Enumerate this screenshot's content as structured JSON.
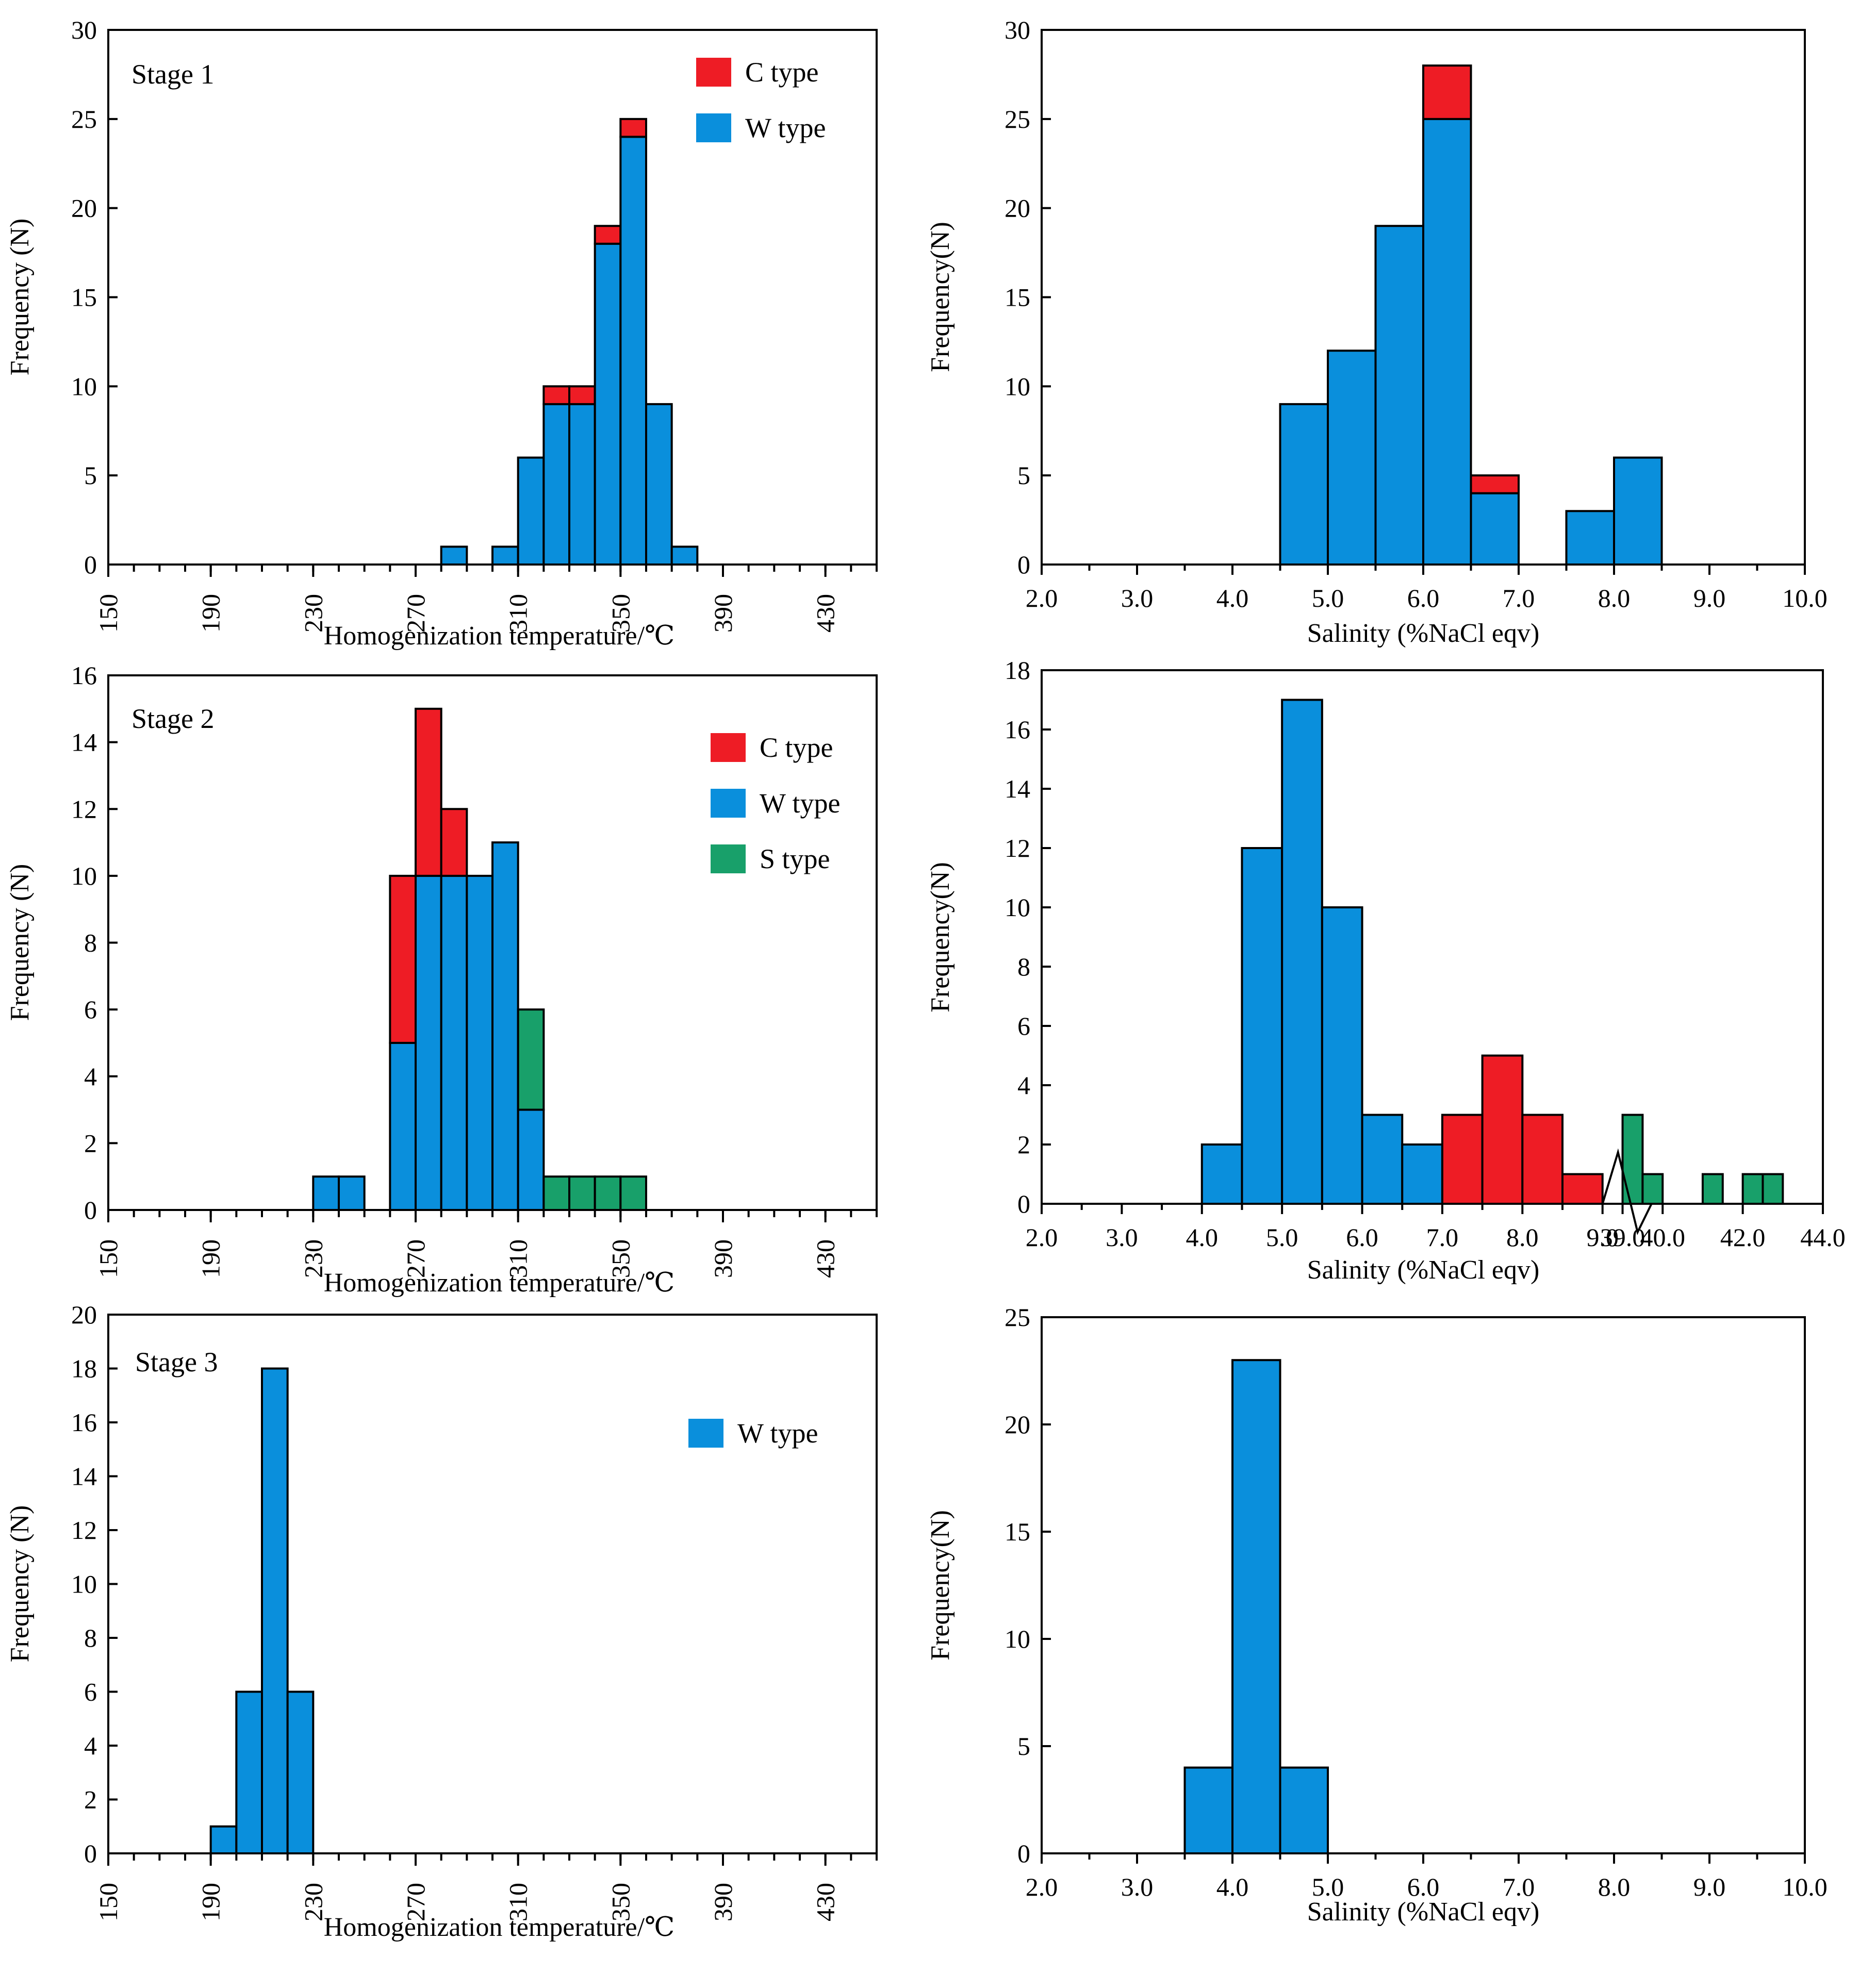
{
  "colors": {
    "C": "#ee1c25",
    "W": "#0a8fdc",
    "S": "#18a06a",
    "edge": "#000000"
  },
  "chart_data": [
    {
      "type": "bar",
      "stacked": true,
      "panel": "stage1-temperature",
      "stage_label": "Stage 1",
      "xlabel": "Homogenization temperature/℃",
      "ylabel": "Frequency (N)",
      "xlim": [
        150,
        450
      ],
      "ylim": [
        0,
        30
      ],
      "bin_width": 10,
      "x_ticks": [
        "150",
        "190",
        "230",
        "270",
        "310",
        "350",
        "390",
        "430"
      ],
      "y_ticks": [
        "0",
        "5",
        "10",
        "15",
        "20",
        "25",
        "30"
      ],
      "legend": [
        {
          "key": "C",
          "label": "C type"
        },
        {
          "key": "W",
          "label": "W type"
        }
      ],
      "bins": [
        {
          "start": 280,
          "W": 1,
          "C": 0
        },
        {
          "start": 300,
          "W": 1,
          "C": 0
        },
        {
          "start": 310,
          "W": 6,
          "C": 0
        },
        {
          "start": 320,
          "W": 9,
          "C": 1
        },
        {
          "start": 330,
          "W": 9,
          "C": 1
        },
        {
          "start": 340,
          "W": 18,
          "C": 1
        },
        {
          "start": 350,
          "W": 24,
          "C": 1
        },
        {
          "start": 360,
          "W": 9,
          "C": 0
        },
        {
          "start": 370,
          "W": 1,
          "C": 0
        }
      ]
    },
    {
      "type": "bar",
      "stacked": true,
      "panel": "stage1-salinity",
      "xlabel": "Salinity (%NaCl eqv)",
      "ylabel": "Frequency(N)",
      "xlim": [
        2.0,
        10.0
      ],
      "ylim": [
        0,
        30
      ],
      "bin_width": 0.5,
      "x_ticks": [
        "2.0",
        "3.0",
        "4.0",
        "5.0",
        "6.0",
        "7.0",
        "8.0",
        "9.0",
        "10.0"
      ],
      "y_ticks": [
        "0",
        "5",
        "10",
        "15",
        "20",
        "25",
        "30"
      ],
      "bins": [
        {
          "start": 4.5,
          "W": 9,
          "C": 0
        },
        {
          "start": 5.0,
          "W": 12,
          "C": 0
        },
        {
          "start": 5.5,
          "W": 19,
          "C": 0
        },
        {
          "start": 6.0,
          "W": 25,
          "C": 3
        },
        {
          "start": 6.5,
          "W": 4,
          "C": 1
        },
        {
          "start": 7.5,
          "W": 3,
          "C": 0
        },
        {
          "start": 8.0,
          "W": 6,
          "C": 0
        }
      ]
    },
    {
      "type": "bar",
      "stacked": true,
      "panel": "stage2-temperature",
      "stage_label": "Stage 2",
      "xlabel": "Homogenization temperature/℃",
      "ylabel": "Frequency (N)",
      "xlim": [
        150,
        450
      ],
      "ylim": [
        0,
        16
      ],
      "bin_width": 10,
      "x_ticks": [
        "150",
        "190",
        "230",
        "270",
        "310",
        "350",
        "390",
        "430"
      ],
      "y_ticks": [
        "0",
        "2",
        "4",
        "6",
        "8",
        "10",
        "12",
        "14",
        "16"
      ],
      "legend": [
        {
          "key": "C",
          "label": "C type"
        },
        {
          "key": "W",
          "label": "W type"
        },
        {
          "key": "S",
          "label": "S type"
        }
      ],
      "bins": [
        {
          "start": 230,
          "W": 1,
          "C": 0,
          "S": 0
        },
        {
          "start": 240,
          "W": 1,
          "C": 0,
          "S": 0
        },
        {
          "start": 260,
          "W": 5,
          "C": 5,
          "S": 0
        },
        {
          "start": 270,
          "W": 10,
          "C": 5,
          "S": 0
        },
        {
          "start": 280,
          "W": 10,
          "C": 2,
          "S": 0
        },
        {
          "start": 290,
          "W": 10,
          "C": 0,
          "S": 0
        },
        {
          "start": 300,
          "W": 11,
          "C": 0,
          "S": 0
        },
        {
          "start": 310,
          "W": 3,
          "C": 0,
          "S": 3
        },
        {
          "start": 320,
          "W": 0,
          "C": 0,
          "S": 1
        },
        {
          "start": 330,
          "W": 0,
          "C": 0,
          "S": 1
        },
        {
          "start": 340,
          "W": 0,
          "C": 0,
          "S": 1
        },
        {
          "start": 350,
          "W": 0,
          "C": 0,
          "S": 1
        }
      ]
    },
    {
      "type": "bar",
      "stacked": true,
      "panel": "stage2-salinity",
      "broken_axis": true,
      "xlabel": "Salinity (%NaCl eqv)",
      "ylabel": "Frequency(N)",
      "ylim": [
        0,
        18
      ],
      "segments": [
        {
          "xlim": [
            2.0,
            9.0
          ]
        },
        {
          "xlim": [
            38.5,
            44.0
          ]
        }
      ],
      "x_ticks": [
        {
          "label": "2.0",
          "value": 2.0
        },
        {
          "label": "3.0",
          "value": 3.0
        },
        {
          "label": "4.0",
          "value": 4.0
        },
        {
          "label": "5.0",
          "value": 5.0
        },
        {
          "label": "6.0",
          "value": 6.0
        },
        {
          "label": "7.0",
          "value": 7.0
        },
        {
          "label": "8.0",
          "value": 8.0
        },
        {
          "label": "9.0",
          "value": 9.0
        },
        {
          "label": "39.0",
          "value": 39.0
        },
        {
          "label": "40.0",
          "value": 40.0
        },
        {
          "label": "42.0",
          "value": 42.0
        },
        {
          "label": "44.0",
          "value": 44.0
        }
      ],
      "y_ticks": [
        "0",
        "2",
        "4",
        "6",
        "8",
        "10",
        "12",
        "14",
        "16",
        "18"
      ],
      "bins": [
        {
          "start": 4.0,
          "width": 0.5,
          "W": 2
        },
        {
          "start": 4.5,
          "width": 0.5,
          "W": 12
        },
        {
          "start": 5.0,
          "width": 0.5,
          "W": 17
        },
        {
          "start": 5.5,
          "width": 0.5,
          "W": 10
        },
        {
          "start": 6.0,
          "width": 0.5,
          "W": 3
        },
        {
          "start": 6.5,
          "width": 0.5,
          "W": 2
        },
        {
          "start": 7.0,
          "width": 0.5,
          "C": 3
        },
        {
          "start": 7.5,
          "width": 0.5,
          "C": 5
        },
        {
          "start": 8.0,
          "width": 0.5,
          "C": 3
        },
        {
          "start": 8.5,
          "width": 0.5,
          "C": 1
        },
        {
          "start": 39.0,
          "width": 0.5,
          "S": 3
        },
        {
          "start": 39.5,
          "width": 0.5,
          "S": 1
        },
        {
          "start": 41.0,
          "width": 0.5,
          "S": 1
        },
        {
          "start": 42.0,
          "width": 0.5,
          "S": 1
        },
        {
          "start": 42.5,
          "width": 0.5,
          "S": 1
        }
      ]
    },
    {
      "type": "bar",
      "stacked": true,
      "panel": "stage3-temperature",
      "stage_label": "Stage 3",
      "xlabel": "Homogenization temperature/℃",
      "ylabel": "Frequency (N)",
      "xlim": [
        150,
        450
      ],
      "ylim": [
        0,
        20
      ],
      "bin_width": 10,
      "x_ticks": [
        "150",
        "190",
        "230",
        "270",
        "310",
        "350",
        "390",
        "430"
      ],
      "y_ticks": [
        "0",
        "2",
        "4",
        "6",
        "8",
        "10",
        "12",
        "14",
        "16",
        "18",
        "20"
      ],
      "legend": [
        {
          "key": "W",
          "label": "W type"
        }
      ],
      "bins": [
        {
          "start": 190,
          "W": 1
        },
        {
          "start": 200,
          "W": 6
        },
        {
          "start": 210,
          "W": 18
        },
        {
          "start": 220,
          "W": 6
        }
      ]
    },
    {
      "type": "bar",
      "stacked": true,
      "panel": "stage3-salinity",
      "xlabel": "Salinity (%NaCl eqv)",
      "ylabel": "Frequency(N)",
      "xlim": [
        2.0,
        10.0
      ],
      "ylim": [
        0,
        25
      ],
      "bin_width": 0.5,
      "x_ticks": [
        "2.0",
        "3.0",
        "4.0",
        "5.0",
        "6.0",
        "7.0",
        "8.0",
        "9.0",
        "10.0"
      ],
      "y_ticks": [
        "0",
        "5",
        "10",
        "15",
        "20",
        "25"
      ],
      "bins": [
        {
          "start": 3.5,
          "W": 4
        },
        {
          "start": 4.0,
          "W": 23
        },
        {
          "start": 4.5,
          "W": 4
        }
      ]
    }
  ]
}
